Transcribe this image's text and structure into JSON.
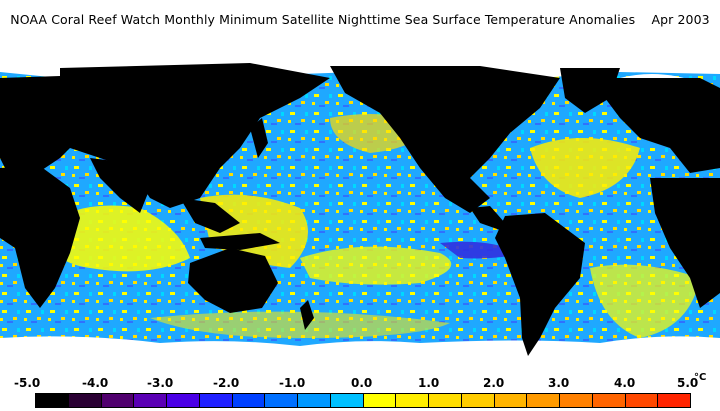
{
  "title": "NOAA Coral Reef Watch Monthly Minimum Satellite Nighttime Sea Surface Temperature Anomalies    Apr 2003",
  "legend": {
    "ticks": [
      "-5.0",
      "-4.0",
      "-3.0",
      "-2.0",
      "-1.0",
      "0.0",
      "1.0",
      "2.0",
      "3.0",
      "4.0",
      "5.0"
    ],
    "unit": "°C",
    "colors": [
      "#000000",
      "#2a0033",
      "#50006e",
      "#5a00b4",
      "#4a00e6",
      "#2020ff",
      "#0040ff",
      "#0070ff",
      "#0098ff",
      "#00c0ff",
      "#ffff00",
      "#ffee00",
      "#ffdd00",
      "#ffcc00",
      "#ffb400",
      "#ff9a00",
      "#ff8000",
      "#ff6400",
      "#ff4800",
      "#ff2400"
    ]
  },
  "map": {
    "land_color": "#000000",
    "ice_color": "#ffffff",
    "palette": {
      "warm": "#ffff00",
      "warm2": "#ffdd00",
      "neutral": "#00bfff",
      "cool": "#0080ff",
      "cold": "#4040ff",
      "hot": "#ff6000"
    }
  }
}
